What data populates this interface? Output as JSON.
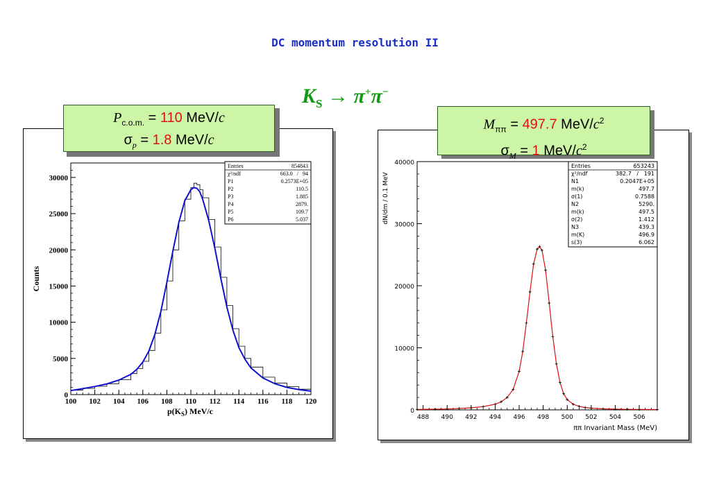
{
  "slide": {
    "title": "DC momentum resolution II",
    "decay_label": {
      "particle": "K",
      "subscript": "S",
      "arrow": "→",
      "products": "π",
      "plus": "+",
      "minus": "−",
      "second": "π"
    }
  },
  "left_callout": {
    "line1": {
      "symbol": "P",
      "subscript": "c.o.m.",
      "equals": " = ",
      "value": "110",
      "unit": " MeV/",
      "unit_c": "c"
    },
    "line2": {
      "symbol": "σ",
      "subscript": "p",
      "equals": " = ",
      "value": "1.8",
      "unit": " MeV/",
      "unit_c": "c"
    }
  },
  "right_callout": {
    "line1": {
      "symbol": "M",
      "subscript": "ππ",
      "equals": " = ",
      "value": "497.7",
      "unit": " MeV/",
      "unit_c": "c",
      "power": "2"
    },
    "line2": {
      "symbol": "σ",
      "subscript": "M",
      "equals": " = ",
      "value": "1",
      "unit": " MeV/",
      "unit_c": "c",
      "power": "2"
    }
  },
  "colors": {
    "title": "#1a2fc4",
    "decay": "#119911",
    "highlight": "#e01010",
    "callout_bg": "#ccf5a6",
    "fit_left": "#1010cc",
    "fit_right": "#dd1111"
  },
  "chart_data": [
    {
      "type": "line",
      "title": "",
      "xlabel": "p(K_S) MeV/c",
      "xlabel_main": "p(K",
      "xlabel_sub": "S",
      "xlabel_tail": ") MeV/c",
      "ylabel": "Counts",
      "xlim": [
        100,
        120
      ],
      "ylim": [
        0,
        32000
      ],
      "x_ticks": [
        "100",
        "102",
        "104",
        "106",
        "108",
        "110",
        "112",
        "114",
        "116",
        "118",
        "120"
      ],
      "y_ticks": [
        "0",
        "5000",
        "10000",
        "15000",
        "20000",
        "25000",
        "30000"
      ],
      "series": [
        {
          "style": "histogram",
          "x": [
            100,
            101,
            102,
            103,
            104,
            105,
            105.5,
            106,
            106.5,
            107,
            107.5,
            108,
            108.5,
            109,
            109.5,
            110,
            110.25,
            110.5,
            110.75,
            111,
            111.5,
            112,
            112.5,
            113,
            113.5,
            114,
            114.5,
            115,
            116,
            117,
            118,
            119,
            120
          ],
          "values": [
            600,
            850,
            1150,
            1500,
            2050,
            2900,
            3600,
            4600,
            6100,
            8500,
            11700,
            15700,
            20000,
            24000,
            27000,
            28600,
            29200,
            29000,
            28300,
            27200,
            24200,
            20400,
            16200,
            12300,
            9100,
            6700,
            5000,
            3800,
            2400,
            1600,
            1100,
            750,
            500
          ]
        },
        {
          "style": "fit",
          "x": [
            100,
            101,
            102,
            103,
            104,
            105,
            105.5,
            106,
            106.5,
            107,
            107.5,
            108,
            108.5,
            109,
            109.5,
            110,
            110.25,
            110.5,
            110.75,
            111,
            111.5,
            112,
            112.5,
            113,
            113.5,
            114,
            114.5,
            115,
            116,
            117,
            118,
            119,
            120
          ],
          "values": [
            560,
            820,
            1120,
            1480,
            2000,
            2800,
            3500,
            4500,
            6000,
            8300,
            11500,
            15500,
            19800,
            23800,
            26800,
            28300,
            28600,
            28500,
            28000,
            26900,
            24000,
            20200,
            16000,
            12100,
            8900,
            6500,
            4900,
            3700,
            2300,
            1500,
            1000,
            700,
            480
          ]
        }
      ],
      "stats": [
        {
          "name": "Entries",
          "value": "854843"
        },
        {
          "name": "χ²/ndf",
          "value": "663.0   /   94"
        },
        {
          "name": "P1",
          "value": "0.2573E+05"
        },
        {
          "name": "P2",
          "value": "110.5"
        },
        {
          "name": "P3",
          "value": "1.885"
        },
        {
          "name": "P4",
          "value": "2879."
        },
        {
          "name": "P5",
          "value": "109.7"
        },
        {
          "name": "P6",
          "value": "5.037"
        }
      ]
    },
    {
      "type": "line",
      "title": "",
      "xlabel": "ππ Invariant Mass (MeV)",
      "ylabel": "dN/dm / 0.1 MeV",
      "xlim": [
        487.5,
        507.5
      ],
      "ylim": [
        0,
        40000
      ],
      "x_ticks": [
        "488",
        "490",
        "492",
        "494",
        "496",
        "498",
        "500",
        "502",
        "504",
        "506"
      ],
      "y_ticks": [
        "0",
        "10000",
        "20000",
        "30000",
        "40000"
      ],
      "series": [
        {
          "style": "points+fit",
          "x": [
            487.5,
            489,
            490,
            491,
            492,
            493,
            494,
            494.5,
            495,
            495.5,
            496,
            496.3,
            496.6,
            496.9,
            497.2,
            497.5,
            497.7,
            497.9,
            498.2,
            498.5,
            498.8,
            499.1,
            499.4,
            499.7,
            500,
            500.5,
            501,
            501.5,
            502,
            503,
            504,
            505,
            506,
            507.5
          ],
          "values": [
            80,
            110,
            150,
            220,
            330,
            520,
            900,
            1300,
            2000,
            3300,
            6200,
            9400,
            14000,
            19000,
            23500,
            25900,
            26300,
            25700,
            22500,
            17200,
            11800,
            7400,
            4400,
            2600,
            1650,
            900,
            560,
            380,
            280,
            170,
            120,
            90,
            70,
            60
          ]
        }
      ],
      "stats": [
        {
          "name": "Entries",
          "value": "653243"
        },
        {
          "name": "χ²/ndf",
          "value": "382.7   /   191"
        },
        {
          "name": "N1",
          "value": "0.2047E+05"
        },
        {
          "name": "m(k)",
          "value": "497.7"
        },
        {
          "name": "σ(1)",
          "value": "0.7588"
        },
        {
          "name": "N2",
          "value": "5290."
        },
        {
          "name": "m(k)",
          "value": "497.5"
        },
        {
          "name": "σ(2)",
          "value": "1.412"
        },
        {
          "name": "N3",
          "value": "439.3"
        },
        {
          "name": "m(K)",
          "value": "496.9"
        },
        {
          "name": "s(3)",
          "value": "6.062"
        }
      ]
    }
  ]
}
